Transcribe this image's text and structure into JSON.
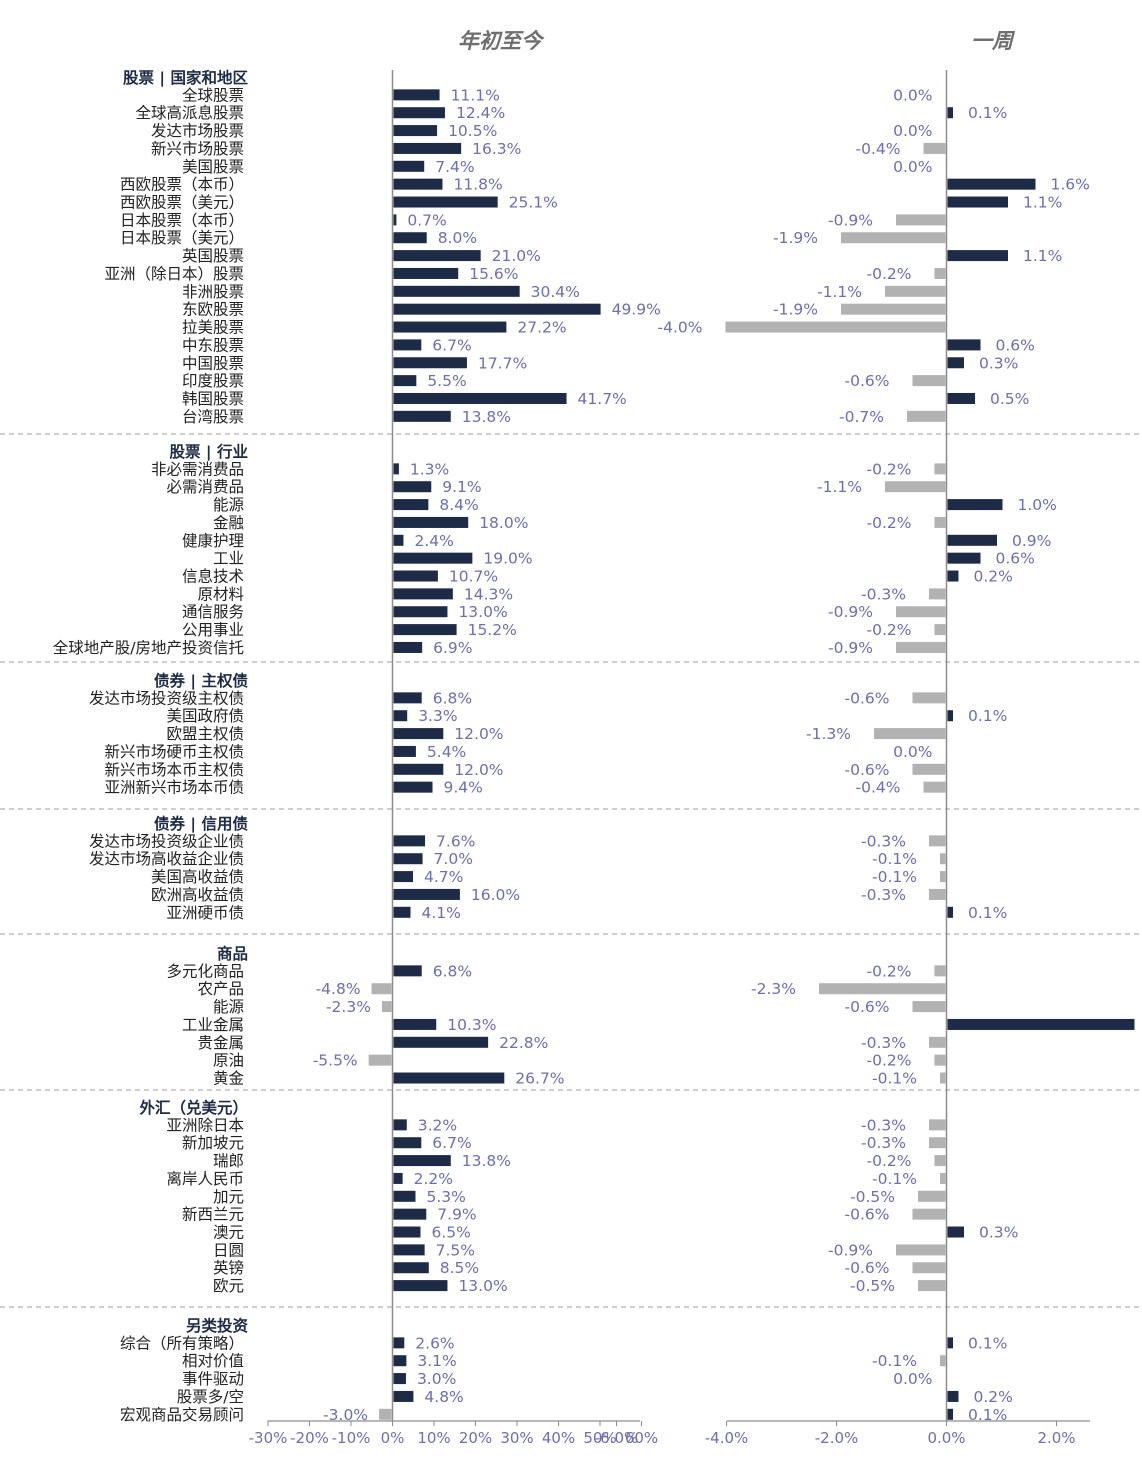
{
  "colors": {
    "positive": "#1d2b47",
    "negative": "#b2b2b2",
    "axis": "#8c8c8c",
    "separator": "#b0b0b0",
    "value_text": "#6b6fb3"
  },
  "chart_data": {
    "type": "bar",
    "orientation": "horizontal",
    "panels": [
      {
        "title": "年初至今",
        "xlim": [
          -30,
          60
        ],
        "ticks": [
          "-30%",
          "-20%",
          "-10%",
          "0%",
          "10%",
          "20%",
          "30%",
          "40%",
          "50%",
          "60%"
        ]
      },
      {
        "title": "一周",
        "xlim": [
          -6,
          4
        ],
        "ticks": [
          "-6.0%",
          "-4.0%",
          "-2.0%",
          "0.0%",
          "2.0%",
          "4.0%"
        ]
      }
    ],
    "groups": [
      {
        "name": "股票 | 国家和地区",
        "rows": [
          {
            "label": "全球股票",
            "ytd": 11.1,
            "week": 0.0
          },
          {
            "label": "全球高派息股票",
            "ytd": 12.4,
            "week": 0.1
          },
          {
            "label": "发达市场股票",
            "ytd": 10.5,
            "week": 0.0
          },
          {
            "label": "新兴市场股票",
            "ytd": 16.3,
            "week": -0.4
          },
          {
            "label": "美国股票",
            "ytd": 7.4,
            "week": 0.0
          },
          {
            "label": "西欧股票（本币）",
            "ytd": 11.8,
            "week": 1.6
          },
          {
            "label": "西欧股票（美元）",
            "ytd": 25.1,
            "week": 1.1
          },
          {
            "label": "日本股票（本币）",
            "ytd": 0.7,
            "week": -0.9
          },
          {
            "label": "日本股票（美元）",
            "ytd": 8.0,
            "week": -1.9
          },
          {
            "label": "英国股票",
            "ytd": 21.0,
            "week": 1.1
          },
          {
            "label": "亚洲（除日本）股票",
            "ytd": 15.6,
            "week": -0.2
          },
          {
            "label": "非洲股票",
            "ytd": 30.4,
            "week": -1.1
          },
          {
            "label": "东欧股票",
            "ytd": 49.9,
            "week": -1.9
          },
          {
            "label": "拉美股票",
            "ytd": 27.2,
            "week": -4.0
          },
          {
            "label": "中东股票",
            "ytd": 6.7,
            "week": 0.6
          },
          {
            "label": "中国股票",
            "ytd": 17.7,
            "week": 0.3
          },
          {
            "label": "印度股票",
            "ytd": 5.5,
            "week": -0.6
          },
          {
            "label": "韩国股票",
            "ytd": 41.7,
            "week": 0.5
          },
          {
            "label": "台湾股票",
            "ytd": 13.8,
            "week": -0.7
          }
        ]
      },
      {
        "name": "股票 | 行业",
        "rows": [
          {
            "label": "非必需消费品",
            "ytd": 1.3,
            "week": -0.2
          },
          {
            "label": "必需消费品",
            "ytd": 9.1,
            "week": -1.1
          },
          {
            "label": "能源",
            "ytd": 8.4,
            "week": 1.0
          },
          {
            "label": "金融",
            "ytd": 18.0,
            "week": -0.2
          },
          {
            "label": "健康护理",
            "ytd": 2.4,
            "week": 0.9
          },
          {
            "label": "工业",
            "ytd": 19.0,
            "week": 0.6
          },
          {
            "label": "信息技术",
            "ytd": 10.7,
            "week": 0.2
          },
          {
            "label": "原材料",
            "ytd": 14.3,
            "week": -0.3
          },
          {
            "label": "通信服务",
            "ytd": 13.0,
            "week": -0.9
          },
          {
            "label": "公用事业",
            "ytd": 15.2,
            "week": -0.2
          },
          {
            "label": "全球地产股/房地产投资信托",
            "ytd": 6.9,
            "week": -0.9
          }
        ]
      },
      {
        "name": "债券 | 主权债",
        "rows": [
          {
            "label": "发达市场投资级主权债",
            "ytd": 6.8,
            "week": -0.6
          },
          {
            "label": "美国政府债",
            "ytd": 3.3,
            "week": 0.1
          },
          {
            "label": "欧盟主权债",
            "ytd": 12.0,
            "week": -1.3
          },
          {
            "label": "新兴市场硬币主权债",
            "ytd": 5.4,
            "week": 0.0
          },
          {
            "label": "新兴市场本币主权债",
            "ytd": 12.0,
            "week": -0.6
          },
          {
            "label": "亚洲新兴市场本币债",
            "ytd": 9.4,
            "week": -0.4
          }
        ]
      },
      {
        "name": "债券 | 信用债",
        "rows": [
          {
            "label": "发达市场投资级企业债",
            "ytd": 7.6,
            "week": -0.3
          },
          {
            "label": "发达市场高收益企业债",
            "ytd": 7.0,
            "week": -0.1
          },
          {
            "label": "美国高收益债",
            "ytd": 4.7,
            "week": -0.1
          },
          {
            "label": "欧洲高收益债",
            "ytd": 16.0,
            "week": -0.3
          },
          {
            "label": "亚洲硬币债",
            "ytd": 4.1,
            "week": 0.1
          }
        ]
      },
      {
        "name": "商品",
        "rows": [
          {
            "label": "多元化商品",
            "ytd": 6.8,
            "week": -0.2
          },
          {
            "label": "农产品",
            "ytd": -4.8,
            "week": -2.3
          },
          {
            "label": "能源",
            "ytd": -2.3,
            "week": -0.6
          },
          {
            "label": "工业金属",
            "ytd": 10.3,
            "week": 3.4
          },
          {
            "label": "贵金属",
            "ytd": 22.8,
            "week": -0.3
          },
          {
            "label": "原油",
            "ytd": -5.5,
            "week": -0.2
          },
          {
            "label": "黄金",
            "ytd": 26.7,
            "week": -0.1
          }
        ]
      },
      {
        "name": "外汇（兑美元）",
        "rows": [
          {
            "label": "亚洲除日本",
            "ytd": 3.2,
            "week": -0.3
          },
          {
            "label": "新加坡元",
            "ytd": 6.7,
            "week": -0.3
          },
          {
            "label": "瑞郎",
            "ytd": 13.8,
            "week": -0.2
          },
          {
            "label": "离岸人民币",
            "ytd": 2.2,
            "week": -0.1
          },
          {
            "label": "加元",
            "ytd": 5.3,
            "week": -0.5
          },
          {
            "label": "新西兰元",
            "ytd": 7.9,
            "week": -0.6
          },
          {
            "label": "澳元",
            "ytd": 6.5,
            "week": 0.3
          },
          {
            "label": "日圆",
            "ytd": 7.5,
            "week": -0.9
          },
          {
            "label": "英镑",
            "ytd": 8.5,
            "week": -0.6
          },
          {
            "label": "欧元",
            "ytd": 13.0,
            "week": -0.5
          }
        ]
      },
      {
        "name": "另类投资",
        "rows": [
          {
            "label": "综合（所有策略）",
            "ytd": 2.6,
            "week": 0.1
          },
          {
            "label": "相对价值",
            "ytd": 3.1,
            "week": -0.1
          },
          {
            "label": "事件驱动",
            "ytd": 3.0,
            "week": 0.0
          },
          {
            "label": "股票多/空",
            "ytd": 4.8,
            "week": 0.2
          },
          {
            "label": "宏观商品交易顾问",
            "ytd": -3.0,
            "week": 0.1
          }
        ]
      }
    ]
  }
}
